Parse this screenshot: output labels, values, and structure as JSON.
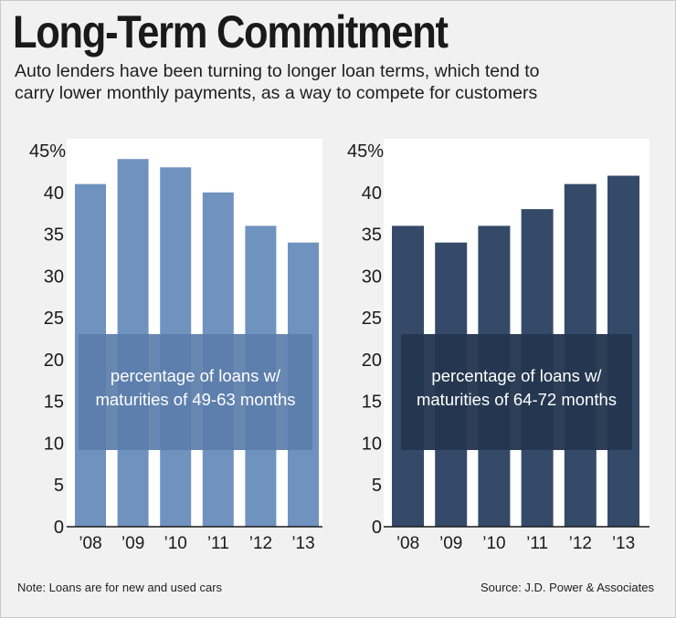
{
  "title": "Long-Term Commitment",
  "subtitle_line1": "Auto lenders have been turning to longer loan terms, which tend to",
  "subtitle_line2": "carry lower monthly payments, as a way to compete for customers",
  "note": "Note: Loans are for new and used cars",
  "source": "Source: J.D. Power & Associates",
  "colors": {
    "background": "#f1f1f2",
    "panel": "#ffffff",
    "left_bar": "#7092be",
    "right_bar": "#344a68",
    "left_label_box": "#5b7eab",
    "right_label_box": "#24364f"
  },
  "chart_data": [
    {
      "type": "bar",
      "title": "",
      "label_line1": "percentage of loans w/",
      "label_line2": "maturities of 49-63 months",
      "categories": [
        "’08",
        "’09",
        "’10",
        "’11",
        "’12",
        "’13"
      ],
      "values": [
        41,
        44,
        43,
        40,
        36,
        34
      ],
      "ylim": [
        0,
        45
      ],
      "yticks": [
        "45%",
        "40",
        "35",
        "30",
        "25",
        "20",
        "15",
        "10",
        "5",
        "0"
      ],
      "ytick_values": [
        45,
        40,
        35,
        30,
        25,
        20,
        15,
        10,
        5,
        0
      ],
      "xlabel": "",
      "ylabel": "",
      "grid": false
    },
    {
      "type": "bar",
      "title": "",
      "label_line1": "percentage of loans w/",
      "label_line2": "maturities of 64-72 months",
      "categories": [
        "’08",
        "’09",
        "’10",
        "’11",
        "’12",
        "’13"
      ],
      "values": [
        36,
        34,
        36,
        38,
        41,
        42
      ],
      "ylim": [
        0,
        45
      ],
      "yticks": [
        "45%",
        "40",
        "35",
        "30",
        "25",
        "20",
        "15",
        "10",
        "5",
        "0"
      ],
      "ytick_values": [
        45,
        40,
        35,
        30,
        25,
        20,
        15,
        10,
        5,
        0
      ],
      "xlabel": "",
      "ylabel": "",
      "grid": false
    }
  ]
}
